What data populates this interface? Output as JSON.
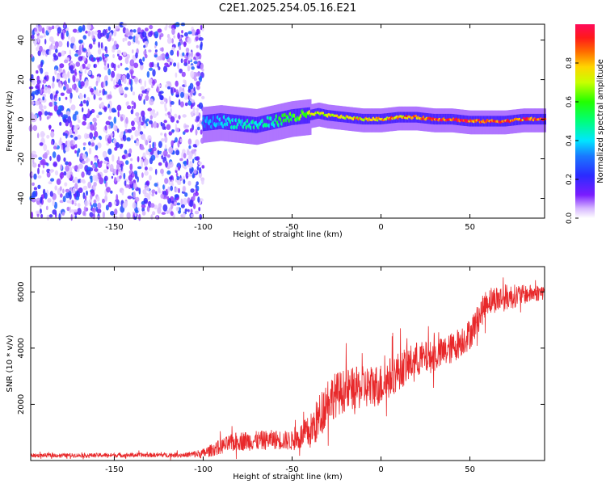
{
  "title": "C2E1.2025.254.05.16.E21",
  "chart_data": [
    {
      "type": "heatmap",
      "title": "C2E1.2025.254.05.16.E21",
      "xlabel": "Height of straight line (km)",
      "ylabel": "Frequency (Hz)",
      "xlim": [
        -197,
        92
      ],
      "ylim": [
        -50,
        48
      ],
      "xticks": [
        -150,
        -100,
        -50,
        0,
        50
      ],
      "xtick_labels": [
        "-150",
        "-100",
        "-50",
        "0",
        "50"
      ],
      "yticks": [
        -40,
        -20,
        0,
        20,
        40
      ],
      "ytick_labels": [
        "-40",
        "-20",
        "0",
        "20",
        "40"
      ],
      "colorbar": {
        "label": "Normalized spectral amplitude",
        "range": [
          0,
          1
        ],
        "ticks": [
          0.0,
          0.2,
          0.4,
          0.6,
          0.8
        ],
        "tick_labels": [
          "0.0",
          "0.2",
          "0.4",
          "0.6",
          "0.8"
        ],
        "colormap": "rainbow (white-violet-blue-cyan-green-yellow-orange-red-magenta)"
      },
      "description_points": {
        "noise_region_x": [
          -197,
          -100
        ],
        "signal_track": {
          "x": [
            -100,
            -90,
            -80,
            -70,
            -60,
            -50,
            -40,
            -35,
            -30,
            -20,
            -10,
            0,
            10,
            20,
            30,
            40,
            50,
            60,
            70,
            80,
            92
          ],
          "y": [
            -2,
            -1,
            -2,
            -3,
            -1,
            1,
            2,
            3,
            2,
            1,
            0,
            0,
            1,
            1,
            0,
            0,
            -1,
            -1,
            -1,
            0,
            0
          ],
          "amplitude": [
            0.35,
            0.4,
            0.45,
            0.45,
            0.5,
            0.6,
            0.7,
            0.75,
            0.75,
            0.8,
            0.8,
            0.85,
            0.85,
            0.85,
            0.9,
            0.95,
            0.9,
            0.9,
            0.9,
            0.95,
            0.95
          ]
        }
      }
    },
    {
      "type": "line",
      "xlabel": "Height of straight line (km)",
      "ylabel": "SNR (10 * v/v)",
      "xlim": [
        -197,
        92
      ],
      "ylim": [
        0,
        6900
      ],
      "xticks": [
        -150,
        -100,
        -50,
        0,
        50
      ],
      "xtick_labels": [
        "-150",
        "-100",
        "-50",
        "0",
        "50"
      ],
      "yticks": [
        2000,
        4000,
        6000
      ],
      "ytick_labels": [
        "2000",
        "4000",
        "6000"
      ],
      "color": "#e8282a",
      "series": [
        {
          "name": "SNR",
          "envelope_x": [
            -197,
            -110,
            -100,
            -90,
            -80,
            -70,
            -60,
            -50,
            -40,
            -35,
            -30,
            -20,
            -10,
            0,
            10,
            20,
            30,
            40,
            50,
            60,
            70,
            80,
            92
          ],
          "envelope_mean": [
            180,
            200,
            250,
            500,
            700,
            700,
            750,
            700,
            1000,
            1500,
            2200,
            2500,
            2600,
            2700,
            3200,
            3600,
            3700,
            4000,
            4500,
            5700,
            5800,
            5900,
            6000
          ],
          "envelope_spread": [
            100,
            120,
            250,
            400,
            500,
            500,
            500,
            500,
            900,
            1200,
            1200,
            1100,
            1100,
            1100,
            1000,
            900,
            800,
            800,
            800,
            700,
            700,
            500,
            400
          ]
        }
      ]
    }
  ]
}
